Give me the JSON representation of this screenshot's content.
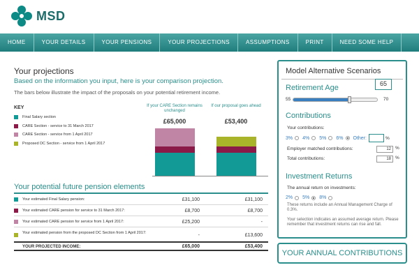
{
  "brand": {
    "name": "MSD"
  },
  "nav": [
    {
      "label": "HOME"
    },
    {
      "label": "YOUR DETAILS"
    },
    {
      "label": "YOUR PENSIONS"
    },
    {
      "label": "YOUR PROJECTIONS"
    },
    {
      "label": "ASSUMPTIONS"
    },
    {
      "label": "PRINT"
    },
    {
      "label": "NEED SOME HELP"
    }
  ],
  "main": {
    "title": "Your projections",
    "subtitle": "Based on the information you input, here is your comparison projection.",
    "intro": "The bars below illustrate the impact of the proposals on your potential retirement income."
  },
  "key": {
    "title": "KEY",
    "items": [
      {
        "label": "Final Salary section",
        "color": "#119a96"
      },
      {
        "label": "CARE Section - service to 31 March 2017",
        "color": "#8c1a48"
      },
      {
        "label": "CARE Section - service from 1 April 2017",
        "color": "#c084a4"
      },
      {
        "label": "Proposed DC Section - service from 1 April 2017",
        "color": "#a9b42b"
      }
    ]
  },
  "chart_data": {
    "type": "bar",
    "stacked": true,
    "categories": [
      "If your CARE Section remains unchanged",
      "If our proposal goes ahead"
    ],
    "totals_label": [
      "£65,000",
      "£53,400"
    ],
    "series": [
      {
        "name": "Final Salary section",
        "color": "#119a96",
        "values": [
          31100,
          31100
        ]
      },
      {
        "name": "CARE Section - service to 31 March 2017",
        "color": "#8c1a48",
        "values": [
          8700,
          8700
        ]
      },
      {
        "name": "CARE Section - service from 1 April 2017",
        "color": "#c084a4",
        "values": [
          25200,
          0
        ]
      },
      {
        "name": "Proposed DC Section - service from 1 April 2017",
        "color": "#a9b42b",
        "values": [
          0,
          13600
        ]
      }
    ],
    "ylim": [
      0,
      65000
    ]
  },
  "elements": {
    "title": "Your potential future pension elements",
    "rows": [
      {
        "label": "Your estimated Final Salary pension:",
        "color": "#119a96",
        "v1": "£31,100",
        "v2": "£31,100"
      },
      {
        "label": "Your estimated CARE pension for service to 31 March 2017:",
        "color": "#8c1a48",
        "v1": "£8,700",
        "v2": "£8,700"
      },
      {
        "label": "Your estimated CARE pension for service from 1 April 2017:",
        "color": "#c084a4",
        "v1": "£25,200",
        "v2": "-"
      },
      {
        "label": "Your estimated pension from the proposed DC Section from 1 April 2017:",
        "color": "#a9b42b",
        "v1": "-",
        "v2": "£13,600"
      }
    ],
    "total": {
      "label": "YOUR PROJECTED INCOME:",
      "v1": "£65,000",
      "v2": "£53,400"
    }
  },
  "panel": {
    "title": "Model Alternative Scenarios",
    "retirement": {
      "heading": "Retirement Age",
      "value": "65",
      "min_label": "55",
      "max_label": "70",
      "min": 55,
      "max": 70,
      "current": 65
    },
    "contributions": {
      "heading": "Contributions",
      "your_label": "Your contributions:",
      "options": [
        {
          "label": "3%",
          "selected": false
        },
        {
          "label": "4%",
          "selected": false
        },
        {
          "label": "5%",
          "selected": false
        },
        {
          "label": "6%",
          "selected": true
        }
      ],
      "other_label": "Other:",
      "other_value": "",
      "pct_sign": "%",
      "employer_label": "Employer matched contributions:",
      "employer_value": "12",
      "total_label": "Total contributions:",
      "total_value": "18"
    },
    "investment": {
      "heading": "Investment Returns",
      "annual_label": "The annual return on investments:",
      "options": [
        {
          "label": "2%",
          "selected": false
        },
        {
          "label": "5%",
          "selected": true
        },
        {
          "label": "8%",
          "selected": false
        }
      ],
      "charge_note": "These returns include an Annual Management Charge of 0.3%.",
      "assumed_note": "Your selection indicates an assumed average return. Please remember that investment returns can rise and fall."
    }
  },
  "contrib_button": {
    "label": "YOUR ANNUAL CONTRIBUTIONS"
  }
}
